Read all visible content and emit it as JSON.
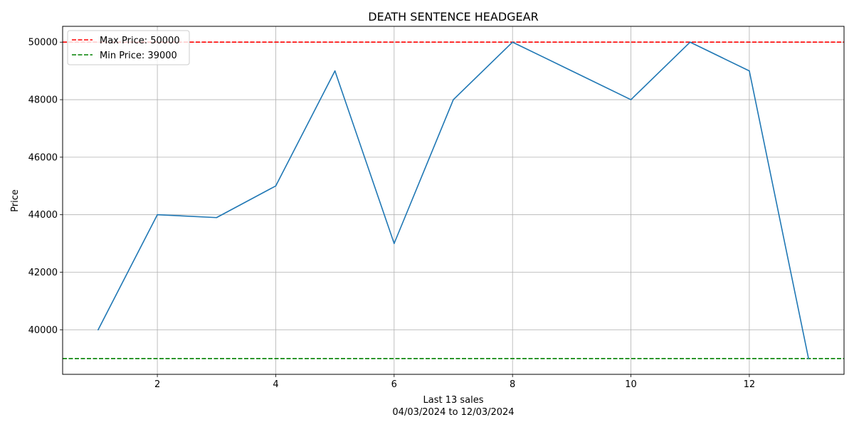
{
  "chart_data": {
    "type": "line",
    "title": "DEATH SENTENCE HEADGEAR",
    "xlabel_line1": "Last 13 sales",
    "xlabel_line2": "04/03/2024 to 12/03/2024",
    "ylabel": "Price",
    "x": [
      1,
      2,
      3,
      4,
      5,
      6,
      7,
      8,
      9,
      10,
      11,
      12,
      13
    ],
    "series": [
      {
        "values": [
          40000,
          44000,
          43900,
          45000,
          49000,
          43000,
          48000,
          50000,
          49000,
          48000,
          50000,
          49000,
          39000
        ],
        "color": "#1f77b4"
      }
    ],
    "reference_lines": [
      {
        "label": "Max Price: 50000",
        "value": 50000,
        "color": "#ff0000",
        "style": "dashed"
      },
      {
        "label": "Min Price: 39000",
        "value": 39000,
        "color": "#008000",
        "style": "dashed"
      }
    ],
    "xlim": [
      0.4,
      13.6
    ],
    "ylim": [
      38450,
      50550
    ],
    "xticks": [
      2,
      4,
      6,
      8,
      10,
      12
    ],
    "yticks": [
      40000,
      42000,
      44000,
      46000,
      48000,
      50000
    ],
    "grid": true,
    "legend_position": "top-left"
  }
}
